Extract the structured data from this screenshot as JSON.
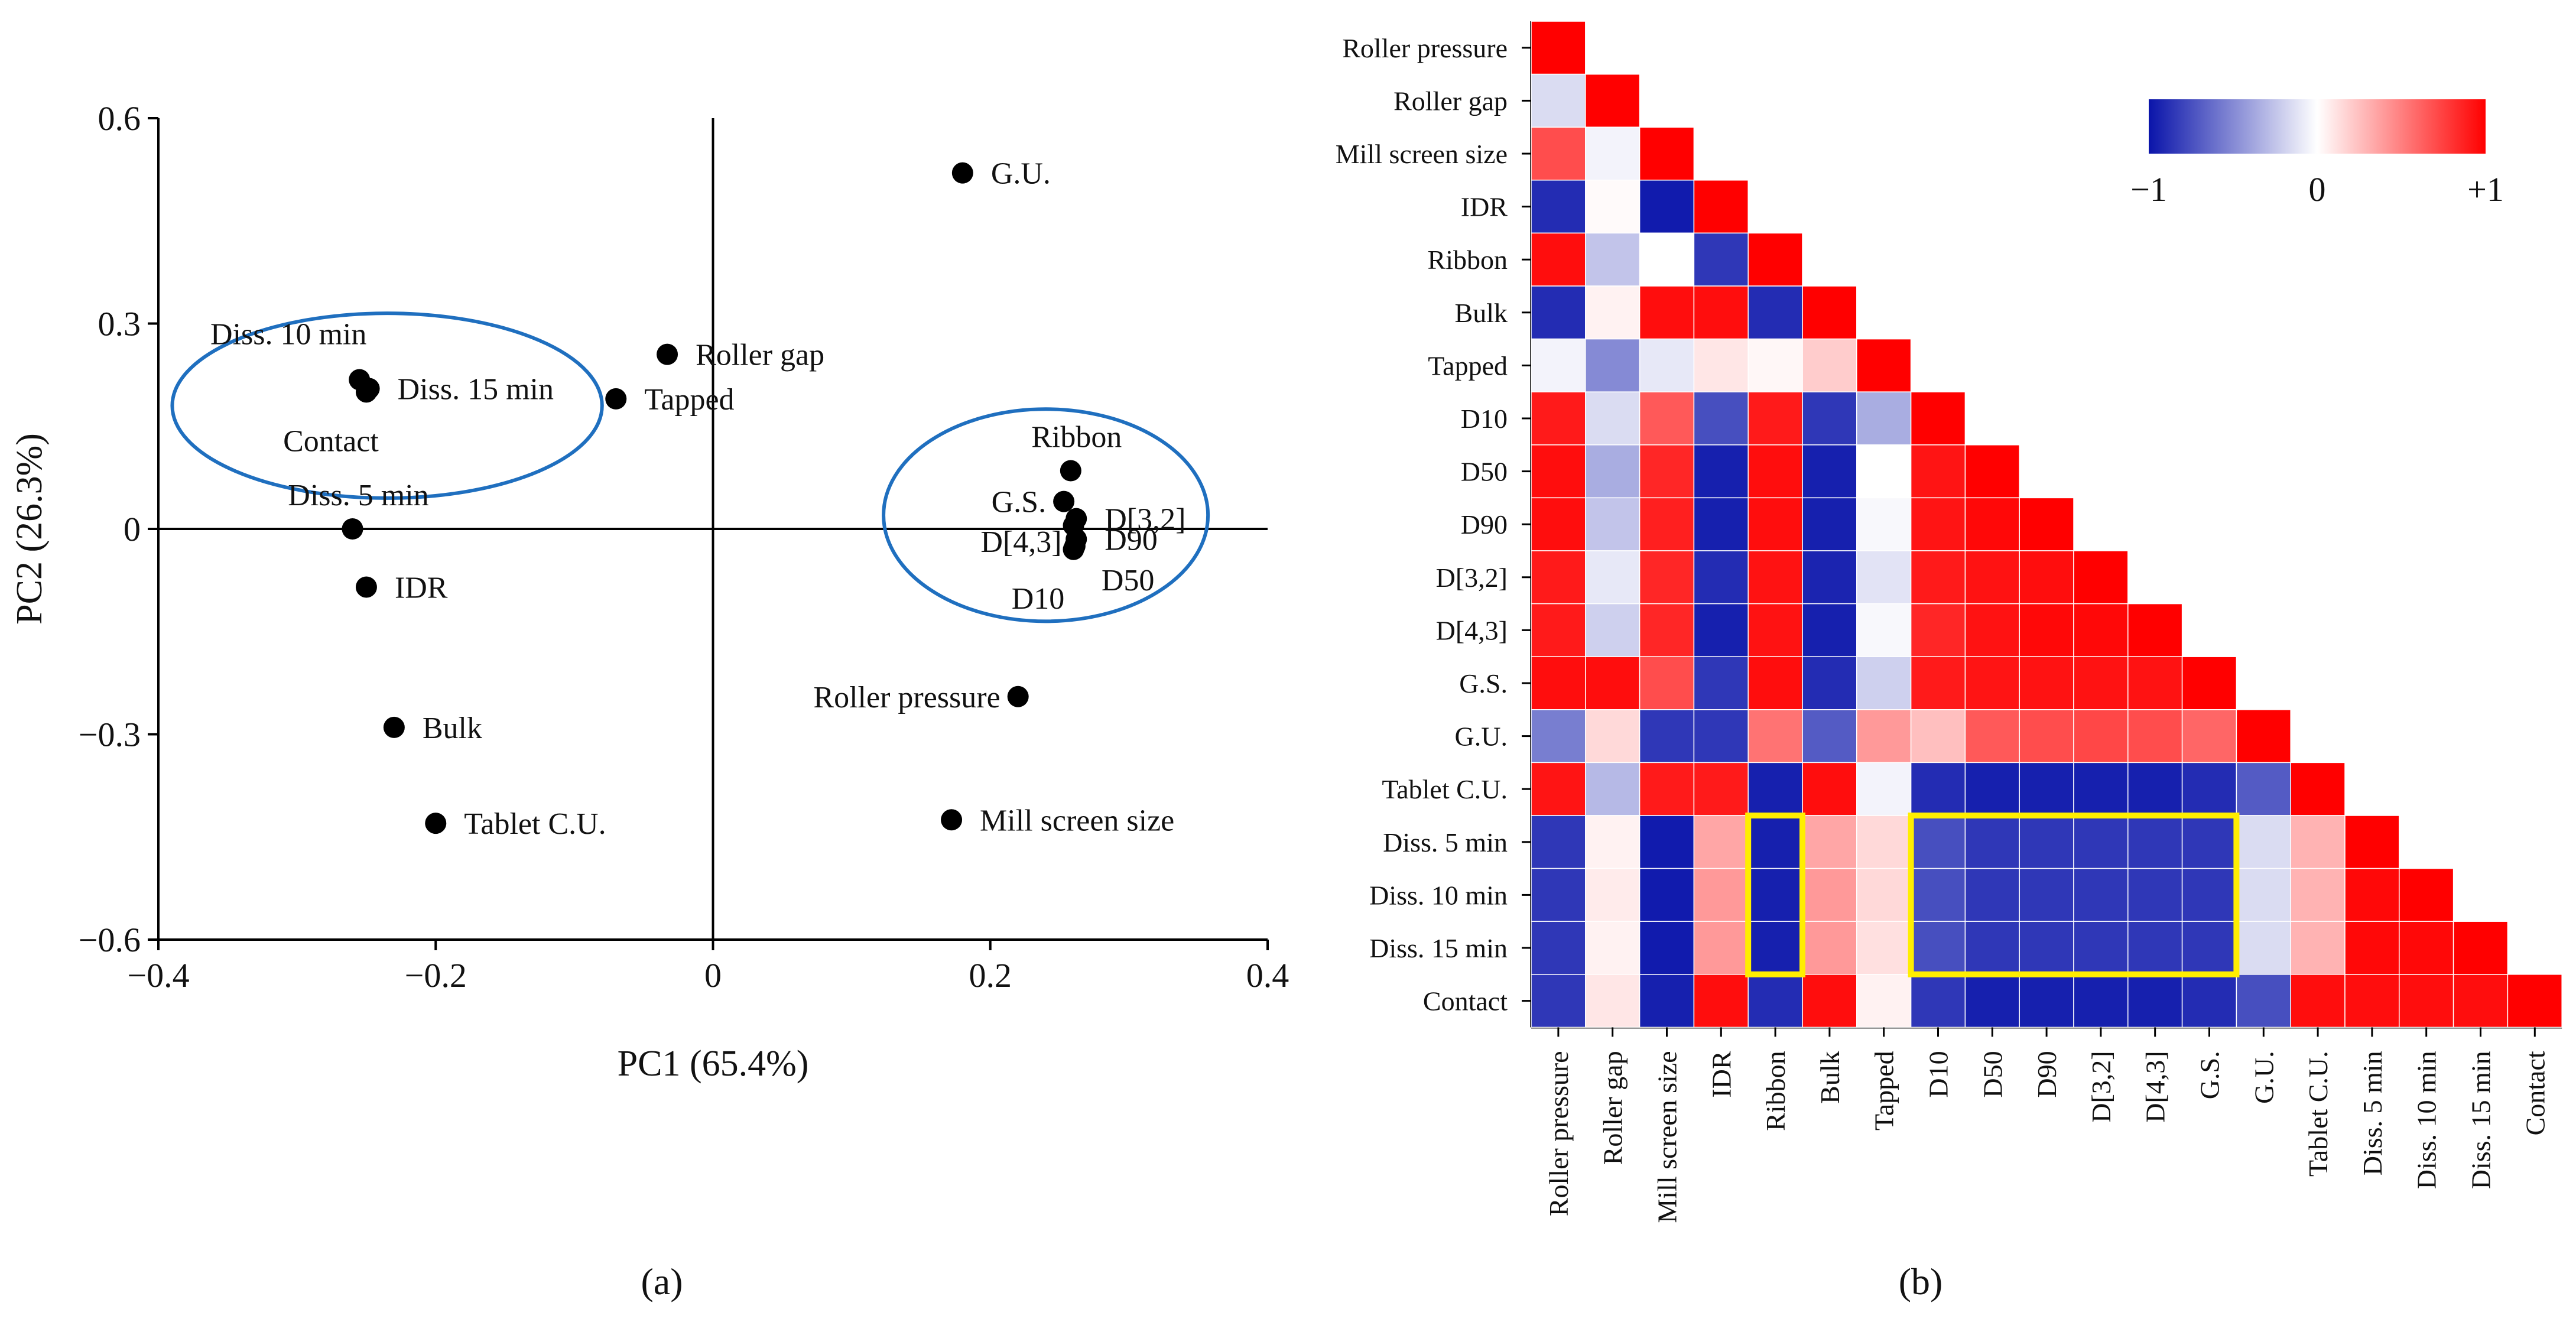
{
  "colors": {
    "negative": "#0a14aa",
    "neutral": "#ffffff",
    "positive": "#ff0000",
    "ellipse": "#1f6fbf",
    "highlight": "#ffee00"
  },
  "captions": {
    "a": "(a)",
    "b": "(b)"
  },
  "chart_data": [
    {
      "type": "scatter",
      "panel": "a",
      "title": "",
      "xlabel": "PC1 (65.4%)",
      "ylabel": "PC2 (26.3%)",
      "xlim": [
        -0.4,
        0.4
      ],
      "ylim": [
        -0.6,
        0.6
      ],
      "xticks": [
        -0.4,
        -0.2,
        0,
        0.2,
        0.4
      ],
      "yticks": [
        -0.6,
        -0.3,
        0,
        0.3,
        0.6
      ],
      "xtick_labels": [
        "−0.4",
        "−0.2",
        "0",
        "0.2",
        "0.4"
      ],
      "ytick_labels": [
        "−0.6",
        "−0.3",
        "0",
        "0.3",
        "0.6"
      ],
      "points": [
        {
          "name": "G.U.",
          "x": 0.18,
          "y": 0.52,
          "anchor": "right"
        },
        {
          "name": "Roller gap",
          "x": -0.033,
          "y": 0.255,
          "anchor": "right"
        },
        {
          "name": "Tapped",
          "x": -0.07,
          "y": 0.19,
          "anchor": "right"
        },
        {
          "name": "Diss. 10 min",
          "x": -0.255,
          "y": 0.218,
          "anchor": "upper-left"
        },
        {
          "name": "Diss. 15 min",
          "x": -0.248,
          "y": 0.205,
          "anchor": "right"
        },
        {
          "name": "Contact",
          "x": -0.25,
          "y": 0.2,
          "anchor": "below"
        },
        {
          "name": "Diss. 5 min",
          "x": -0.26,
          "y": 0.0,
          "anchor": "above"
        },
        {
          "name": "IDR",
          "x": -0.25,
          "y": -0.085,
          "anchor": "right"
        },
        {
          "name": "Bulk",
          "x": -0.23,
          "y": -0.29,
          "anchor": "right"
        },
        {
          "name": "Tablet C.U.",
          "x": -0.2,
          "y": -0.43,
          "anchor": "right"
        },
        {
          "name": "Ribbon",
          "x": 0.258,
          "y": 0.085,
          "anchor": "above"
        },
        {
          "name": "G.S.",
          "x": 0.253,
          "y": 0.04,
          "anchor": "left"
        },
        {
          "name": "D[3,2]",
          "x": 0.262,
          "y": 0.015,
          "anchor": "right"
        },
        {
          "name": "D[4,3]",
          "x": 0.26,
          "y": 0.005,
          "anchor": "lower-left"
        },
        {
          "name": "D90",
          "x": 0.262,
          "y": -0.015,
          "anchor": "right"
        },
        {
          "name": "D50",
          "x": 0.261,
          "y": -0.025,
          "anchor": "lower-right"
        },
        {
          "name": "D10",
          "x": 0.26,
          "y": -0.03,
          "anchor": "below"
        },
        {
          "name": "Roller pressure",
          "x": 0.22,
          "y": -0.245,
          "anchor": "left"
        },
        {
          "name": "Mill screen size",
          "x": 0.172,
          "y": -0.425,
          "anchor": "right"
        }
      ],
      "ellipses": [
        {
          "group": "left",
          "cx": -0.235,
          "cy": 0.18,
          "rx": 0.155,
          "ry": 0.135
        },
        {
          "group": "right",
          "cx": 0.24,
          "cy": 0.02,
          "rx": 0.117,
          "ry": 0.155
        }
      ]
    },
    {
      "type": "heatmap",
      "panel": "b",
      "title": "",
      "variables": [
        "Roller pressure",
        "Roller gap",
        "Mill screen size",
        "IDR",
        "Ribbon",
        "Bulk",
        "Tapped",
        "D10",
        "D50",
        "D90",
        "D[3,2]",
        "D[4,3]",
        "G.S.",
        "G.U.",
        "Tablet C.U.",
        "Diss. 5 min",
        "Diss. 10 min",
        "Diss. 15 min",
        "Contact"
      ],
      "matrix_lower": [
        [
          1
        ],
        [
          -0.15,
          1
        ],
        [
          0.7,
          -0.05,
          1
        ],
        [
          -0.9,
          0.02,
          -0.97,
          1
        ],
        [
          0.95,
          -0.25,
          0.0,
          -0.85,
          1
        ],
        [
          -0.9,
          0.05,
          0.95,
          0.95,
          -0.9,
          1
        ],
        [
          -0.05,
          -0.5,
          -0.1,
          0.1,
          0.03,
          0.2,
          1
        ],
        [
          0.9,
          -0.15,
          0.65,
          -0.75,
          0.9,
          -0.85,
          -0.35,
          1
        ],
        [
          0.95,
          -0.35,
          0.85,
          -0.95,
          0.95,
          -0.95,
          0.0,
          0.92,
          1
        ],
        [
          0.95,
          -0.25,
          0.88,
          -0.95,
          0.95,
          -0.95,
          -0.03,
          0.92,
          0.97,
          1
        ],
        [
          0.9,
          -0.1,
          0.85,
          -0.9,
          0.93,
          -0.93,
          -0.12,
          0.9,
          0.93,
          0.95,
          1
        ],
        [
          0.9,
          -0.2,
          0.85,
          -0.95,
          0.93,
          -0.95,
          -0.03,
          0.85,
          0.93,
          0.97,
          0.97,
          1
        ],
        [
          0.95,
          0.95,
          0.7,
          -0.85,
          0.95,
          -0.9,
          -0.2,
          0.9,
          0.92,
          0.93,
          0.93,
          0.93,
          1
        ],
        [
          -0.55,
          0.15,
          -0.85,
          -0.85,
          0.55,
          -0.7,
          0.4,
          0.25,
          0.65,
          0.7,
          0.72,
          0.7,
          0.6,
          1
        ],
        [
          0.92,
          -0.3,
          0.9,
          0.9,
          -0.95,
          0.95,
          -0.05,
          -0.9,
          -0.95,
          -0.95,
          -0.95,
          -0.95,
          -0.9,
          -0.7,
          1
        ],
        [
          -0.85,
          0.05,
          -0.97,
          0.35,
          -0.95,
          0.35,
          0.15,
          -0.75,
          -0.85,
          -0.85,
          -0.85,
          -0.85,
          -0.85,
          -0.15,
          0.3,
          1
        ],
        [
          -0.85,
          0.08,
          -0.97,
          0.4,
          -0.95,
          0.4,
          0.15,
          -0.75,
          -0.85,
          -0.85,
          -0.85,
          -0.85,
          -0.85,
          -0.15,
          0.3,
          0.97,
          1
        ],
        [
          -0.85,
          0.05,
          -0.97,
          0.4,
          -0.95,
          0.4,
          0.12,
          -0.75,
          -0.85,
          -0.85,
          -0.85,
          -0.85,
          -0.85,
          -0.15,
          0.3,
          0.97,
          0.97,
          1
        ],
        [
          -0.85,
          0.1,
          -0.95,
          0.95,
          -0.9,
          0.95,
          0.05,
          -0.85,
          -0.95,
          -0.95,
          -0.95,
          -0.95,
          -0.9,
          -0.75,
          0.95,
          0.95,
          0.95,
          0.95,
          1
        ]
      ],
      "colorbar": {
        "min": -1,
        "max": 1,
        "tick_labels": [
          "−1",
          "0",
          "+1"
        ]
      },
      "highlights": [
        {
          "rows": [
            "Diss. 5 min",
            "Diss. 15 min"
          ],
          "cols": [
            "Ribbon",
            "Ribbon"
          ]
        },
        {
          "rows": [
            "Diss. 5 min",
            "Diss. 15 min"
          ],
          "cols": [
            "D10",
            "G.S."
          ]
        }
      ]
    }
  ]
}
